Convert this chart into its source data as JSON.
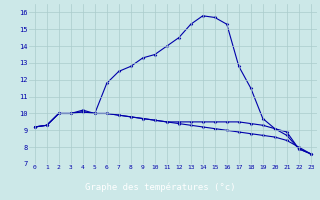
{
  "x": [
    0,
    1,
    2,
    3,
    4,
    5,
    6,
    7,
    8,
    9,
    10,
    11,
    12,
    13,
    14,
    15,
    16,
    17,
    18,
    19,
    20,
    21,
    22,
    23
  ],
  "line1": [
    9.2,
    9.3,
    10.0,
    10.0,
    10.2,
    10.0,
    11.8,
    12.5,
    12.8,
    13.3,
    13.5,
    14.0,
    14.5,
    15.3,
    15.8,
    15.7,
    15.3,
    12.8,
    11.5,
    9.7,
    9.1,
    8.7,
    7.9,
    7.6
  ],
  "line2": [
    9.2,
    9.3,
    10.0,
    10.0,
    10.1,
    10.0,
    10.0,
    9.9,
    9.8,
    9.7,
    9.6,
    9.5,
    9.5,
    9.5,
    9.5,
    9.5,
    9.5,
    9.5,
    9.4,
    9.3,
    9.1,
    8.9,
    7.9,
    7.6
  ],
  "line3": [
    9.2,
    9.3,
    10.0,
    10.0,
    10.1,
    10.0,
    10.0,
    9.9,
    9.8,
    9.7,
    9.6,
    9.5,
    9.4,
    9.3,
    9.2,
    9.1,
    9.0,
    8.9,
    8.8,
    8.7,
    8.6,
    8.4,
    8.0,
    7.6
  ],
  "bg_color": "#cce8e8",
  "line_color": "#0000aa",
  "grid_color": "#aacccc",
  "xlabel": "Graphe des températures (°c)",
  "xlabel_bg": "#0000aa",
  "xlabel_fg": "#ffffff",
  "ylim": [
    7,
    16.5
  ],
  "xlim": [
    -0.5,
    23.5
  ],
  "yticks": [
    7,
    8,
    9,
    10,
    11,
    12,
    13,
    14,
    15,
    16
  ],
  "xticks": [
    0,
    1,
    2,
    3,
    4,
    5,
    6,
    7,
    8,
    9,
    10,
    11,
    12,
    13,
    14,
    15,
    16,
    17,
    18,
    19,
    20,
    21,
    22,
    23
  ]
}
